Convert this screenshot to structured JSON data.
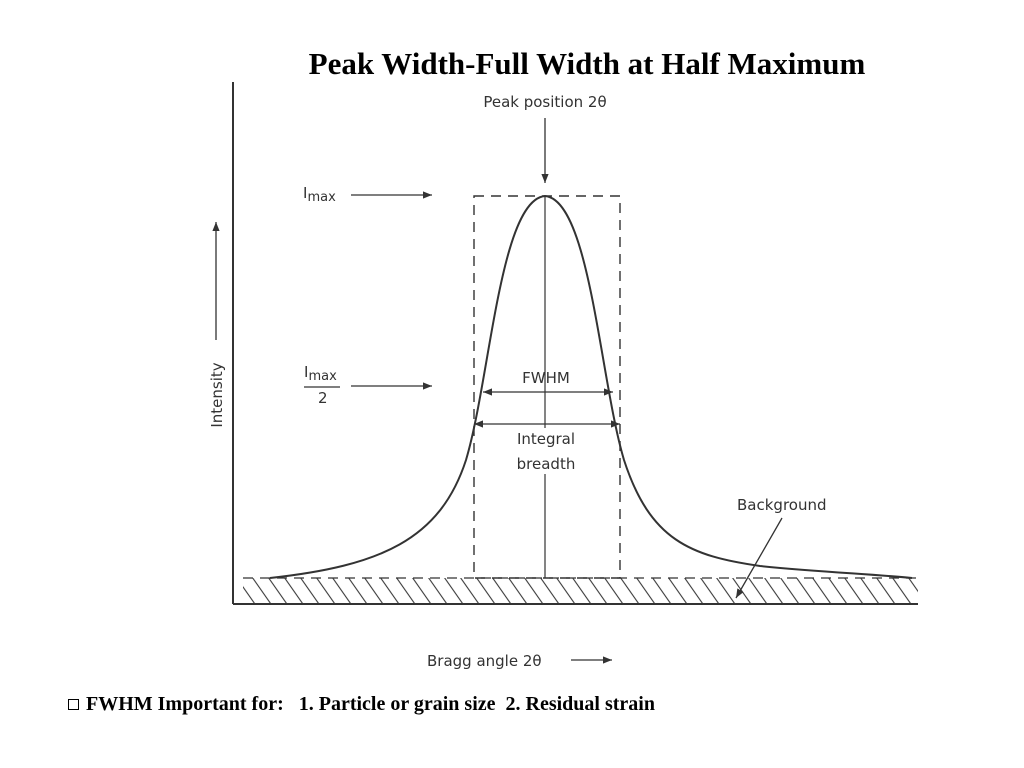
{
  "title": "Peak Width-Full Width at Half Maximum",
  "diagram": {
    "peak_position": "Peak position 2θ",
    "imax": "I",
    "imax_sub": "max",
    "half_num_I": "I",
    "half_num_sub": "max",
    "half_den": "2",
    "intensity": "Intensity",
    "fwhm": "FWHM",
    "integral": "Integral",
    "breadth": "breadth",
    "background": "Background",
    "bragg": "Bragg angle 2θ"
  },
  "footer": {
    "bullet_icon": "square-bullet-icon",
    "text": "FWHM Important for:   1. Particle or grain size  2. Residual strain"
  }
}
